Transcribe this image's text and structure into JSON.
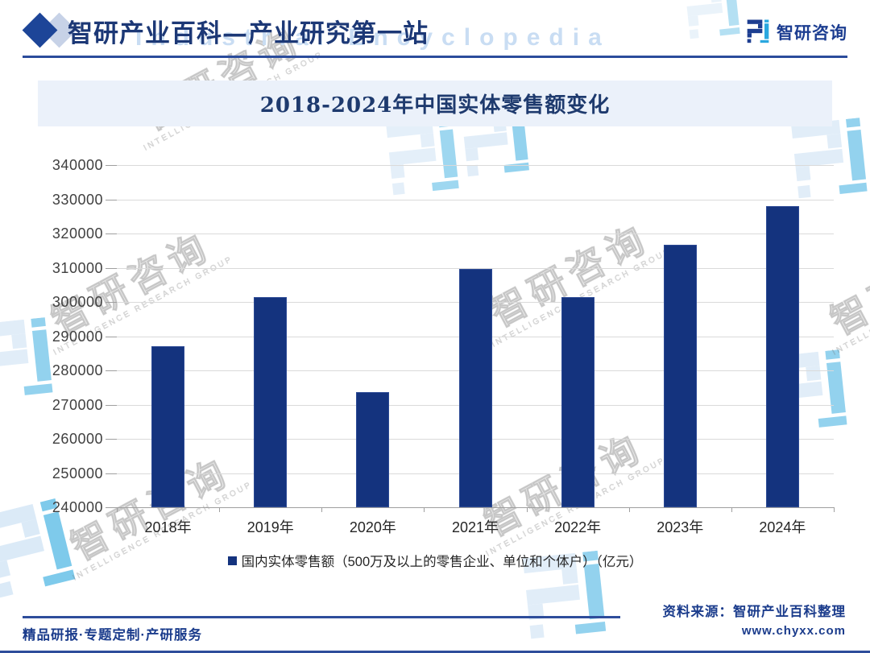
{
  "header": {
    "title": "智研产业百科—产业研究第一站",
    "brand": "智研咨询",
    "watermark_en": "Industrial Encyclopedia"
  },
  "chart_data": {
    "type": "bar",
    "title": "2018-2024年中国实体零售额变化",
    "categories": [
      "2018年",
      "2019年",
      "2020年",
      "2021年",
      "2022年",
      "2023年",
      "2024年"
    ],
    "values": [
      287000,
      301400,
      273700,
      309700,
      301400,
      316800,
      328000
    ],
    "series_name": "国内实体零售额（500万及以上的零售企业、单位和个体户）（亿元）",
    "xlabel": "",
    "ylabel": "",
    "ylim": [
      240000,
      340000
    ],
    "ytick_step": 10000,
    "grid": true,
    "legend_position": "bottom",
    "bar_color": "#14337e"
  },
  "footer": {
    "source": "资料来源：智研产业百科整理",
    "website": "www.chyxx.com",
    "services": "精品研报·专题定制·产研服务"
  },
  "watermarks": {
    "cn": "智研咨询",
    "en": "INTELLIGENCE RESEARCH GROUP"
  },
  "colors": {
    "bar": "#14337e",
    "navy_text": "#1b3c8c",
    "header_text": "#1c3876",
    "banner_bg": "#ebf1fa",
    "rule_blue": "#2e4d9b",
    "gridline": "#dadada",
    "logo_cyan": "#2aa7df",
    "logo_navy": "#1d3e91"
  }
}
